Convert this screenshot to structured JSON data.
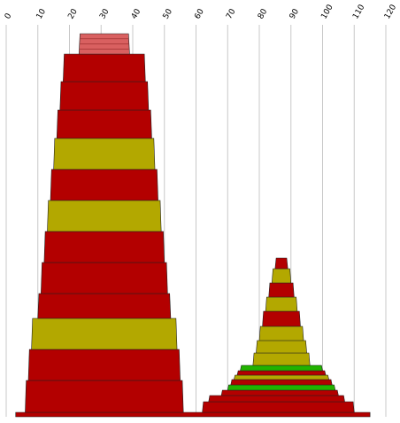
{
  "chart_data": {
    "type": "area",
    "description_units": "x in data units (0-120); each band spans x_left..x_right at its level",
    "xlim": [
      0,
      120
    ],
    "x_ticks": [
      "0",
      "10",
      "20",
      "30",
      "40",
      "50",
      "60",
      "70",
      "80",
      "90",
      "100",
      "110",
      "120"
    ],
    "grid": true,
    "colors": {
      "red": "#b30000",
      "olive": "#b3a800",
      "green": "#22b300",
      "pink": "#d96060",
      "gridline": "#c8c8c8",
      "edge": "#222222"
    },
    "stacks": [
      {
        "name": "",
        "bands": [
          {
            "x0": 3,
            "x1": 3,
            "x2": 115,
            "x3": 115,
            "color": "red",
            "thin": true
          },
          {
            "x0": 6,
            "x1": 6,
            "x2": 56,
            "x3": 56,
            "color": "red"
          },
          {
            "x0": 7,
            "x1": 7,
            "x2": 55,
            "x3": 55,
            "color": "red"
          },
          {
            "x0": 8,
            "x1": 8,
            "x2": 54,
            "x3": 54,
            "color": "olive"
          },
          {
            "x0": 10,
            "x1": 10,
            "x2": 52,
            "x3": 52,
            "color": "red"
          },
          {
            "x0": 11,
            "x1": 11,
            "x2": 51,
            "x3": 51,
            "color": "red"
          },
          {
            "x0": 12,
            "x1": 12,
            "x2": 50,
            "x3": 50,
            "color": "red"
          },
          {
            "x0": 13,
            "x1": 13,
            "x2": 49,
            "x3": 49,
            "color": "olive"
          },
          {
            "x0": 14,
            "x1": 14,
            "x2": 48,
            "x3": 48,
            "color": "red"
          },
          {
            "x0": 15,
            "x1": 15,
            "x2": 47,
            "x3": 47,
            "color": "olive"
          },
          {
            "x0": 16,
            "x1": 16,
            "x2": 46,
            "x3": 46,
            "color": "red"
          },
          {
            "x0": 17,
            "x1": 17,
            "x2": 45,
            "x3": 45,
            "color": "red"
          },
          {
            "x0": 18,
            "x1": 18,
            "x2": 44,
            "x3": 44,
            "color": "red"
          },
          {
            "x0": 23,
            "x1": 23,
            "x2": 39,
            "x3": 39,
            "color": "pink"
          }
        ]
      },
      {
        "name": "",
        "bands": [
          {
            "x0": 62,
            "x1": 62,
            "x2": 110,
            "x3": 110,
            "color": "red"
          },
          {
            "x0": 64,
            "x1": 64,
            "x2": 107,
            "x3": 107,
            "color": "red"
          },
          {
            "x0": 68,
            "x1": 68,
            "x2": 105,
            "x3": 105,
            "color": "red"
          },
          {
            "x0": 70,
            "x1": 70,
            "x2": 104,
            "x3": 104,
            "color": "green"
          },
          {
            "x0": 71,
            "x1": 71,
            "x2": 103,
            "x3": 103,
            "color": "red"
          },
          {
            "x0": 72,
            "x1": 72,
            "x2": 102,
            "x3": 102,
            "color": "olive"
          },
          {
            "x0": 73,
            "x1": 73,
            "x2": 101,
            "x3": 101,
            "color": "red"
          },
          {
            "x0": 74,
            "x1": 74,
            "x2": 100,
            "x3": 100,
            "color": "green"
          },
          {
            "x0": 78,
            "x1": 78,
            "x2": 96,
            "x3": 96,
            "color": "olive"
          },
          {
            "x0": 79,
            "x1": 79,
            "x2": 95,
            "x3": 95,
            "color": "olive"
          },
          {
            "x0": 80,
            "x1": 80,
            "x2": 94,
            "x3": 94,
            "color": "olive"
          },
          {
            "x0": 81,
            "x1": 81,
            "x2": 93,
            "x3": 93,
            "color": "red"
          },
          {
            "x0": 82,
            "x1": 82,
            "x2": 92,
            "x3": 92,
            "color": "olive"
          },
          {
            "x0": 83,
            "x1": 83,
            "x2": 91,
            "x3": 91,
            "color": "red"
          },
          {
            "x0": 84,
            "x1": 84,
            "x2": 90,
            "x3": 90,
            "color": "olive"
          },
          {
            "x0": 85,
            "x1": 85,
            "x2": 89,
            "x3": 89,
            "color": "red"
          }
        ]
      }
    ]
  }
}
